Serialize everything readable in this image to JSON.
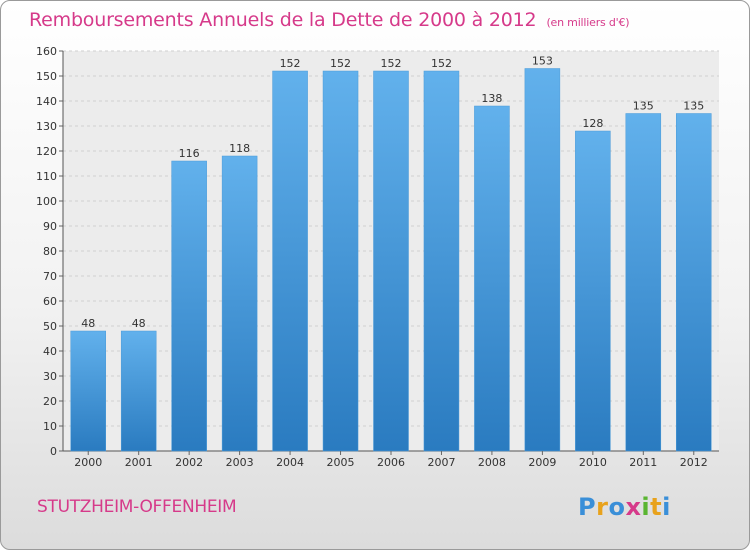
{
  "title": "Remboursements Annuels de la Dette de 2000 à 2012",
  "unit_label": "(en milliers d'€)",
  "commune": "STUTZHEIM-OFFENHEIM",
  "logo": {
    "text": "Proxiti",
    "letters": [
      {
        "ch": "P",
        "color": "#3a8fd8"
      },
      {
        "ch": "r",
        "color": "#e8a21c"
      },
      {
        "ch": "o",
        "color": "#3a8fd8"
      },
      {
        "ch": "x",
        "color": "#d63a8a"
      },
      {
        "ch": "i",
        "color": "#5ab531"
      },
      {
        "ch": "t",
        "color": "#e8a21c"
      },
      {
        "ch": "i",
        "color": "#3a8fd8"
      }
    ]
  },
  "colors": {
    "bar_light": "#62b1ec",
    "bar_dark": "#2a7bc0",
    "title": "#d63a8a",
    "grid": "#cfcfcf"
  },
  "chart_data": {
    "type": "bar",
    "title": "Remboursements Annuels de la Dette de 2000 à 2012",
    "xlabel": "",
    "ylabel": "",
    "categories": [
      "2000",
      "2001",
      "2002",
      "2003",
      "2004",
      "2005",
      "2006",
      "2007",
      "2008",
      "2009",
      "2010",
      "2011",
      "2012"
    ],
    "values": [
      48,
      48,
      116,
      118,
      152,
      152,
      152,
      152,
      138,
      153,
      128,
      135,
      135
    ],
    "ylim": [
      0,
      160
    ],
    "yticks": [
      0,
      10,
      20,
      30,
      40,
      50,
      60,
      70,
      80,
      90,
      100,
      110,
      120,
      130,
      140,
      150,
      160
    ],
    "grid": true,
    "legend": "none"
  }
}
